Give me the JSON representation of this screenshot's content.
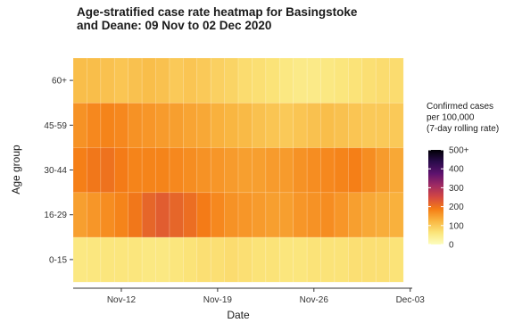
{
  "chart_data": {
    "type": "heatmap",
    "title": "Age-stratified case rate heatmap for Basingstoke and Deane: 09 Nov to 02 Dec 2020",
    "xlabel": "Date",
    "ylabel": "Age group",
    "x": [
      "2020-11-09",
      "2020-11-10",
      "2020-11-11",
      "2020-11-12",
      "2020-11-13",
      "2020-11-14",
      "2020-11-15",
      "2020-11-16",
      "2020-11-17",
      "2020-11-18",
      "2020-11-19",
      "2020-11-20",
      "2020-11-21",
      "2020-11-22",
      "2020-11-23",
      "2020-11-24",
      "2020-11-25",
      "2020-11-26",
      "2020-11-27",
      "2020-11-28",
      "2020-11-29",
      "2020-11-30",
      "2020-12-01",
      "2020-12-02"
    ],
    "x_ticks": [
      {
        "date": "2020-11-12",
        "label": "Nov-12"
      },
      {
        "date": "2020-11-19",
        "label": "Nov-19"
      },
      {
        "date": "2020-11-26",
        "label": "Nov-26"
      },
      {
        "date": "2020-12-03",
        "label": "Dec-03"
      }
    ],
    "y": [
      "0-15",
      "16-29",
      "30-44",
      "45-59",
      "60+"
    ],
    "z": [
      [
        55,
        58,
        60,
        60,
        60,
        55,
        55,
        60,
        65,
        70,
        70,
        75,
        70,
        65,
        65,
        60,
        60,
        65,
        65,
        65,
        70,
        70,
        70,
        65
      ],
      [
        150,
        160,
        170,
        180,
        195,
        215,
        225,
        215,
        205,
        190,
        175,
        165,
        160,
        155,
        150,
        150,
        160,
        165,
        170,
        160,
        150,
        140,
        135,
        130
      ],
      [
        185,
        195,
        200,
        190,
        180,
        180,
        180,
        175,
        170,
        165,
        160,
        155,
        150,
        150,
        155,
        155,
        165,
        170,
        175,
        180,
        185,
        170,
        155,
        140
      ],
      [
        165,
        175,
        180,
        175,
        165,
        160,
        155,
        150,
        145,
        140,
        130,
        125,
        120,
        110,
        105,
        100,
        105,
        110,
        115,
        110,
        105,
        100,
        100,
        100
      ],
      [
        115,
        115,
        110,
        105,
        110,
        115,
        110,
        100,
        105,
        100,
        90,
        85,
        75,
        70,
        65,
        55,
        50,
        50,
        55,
        60,
        65,
        70,
        75,
        75
      ]
    ],
    "colorscale": {
      "title": "Confirmed cases per 100,000 (7-day rolling rate)",
      "title_lines": [
        "Confirmed cases",
        "per 100,000",
        "(7-day rolling rate)"
      ],
      "min": 0,
      "max": 500,
      "ticks": [
        "0",
        "100",
        "200",
        "300",
        "400",
        "500+"
      ],
      "colors": [
        "#fcfdbf",
        "#fbe57a",
        "#f9b641",
        "#f57d15",
        "#d44842",
        "#9f2a63",
        "#5d126e",
        "#2a0b4b",
        "#000004"
      ]
    }
  }
}
